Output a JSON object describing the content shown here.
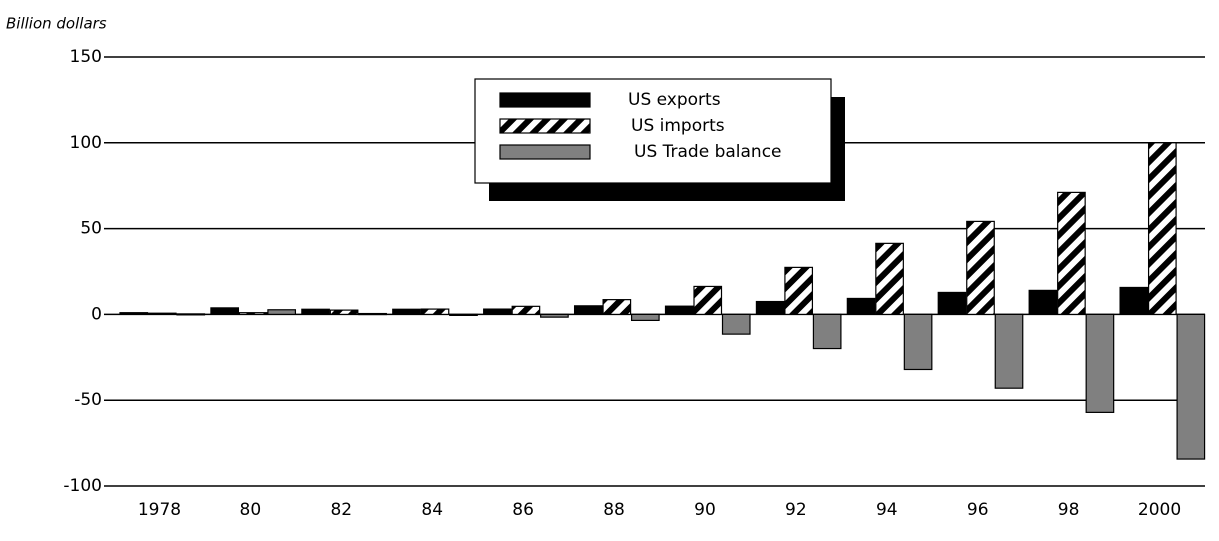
{
  "chart_data": {
    "type": "bar",
    "y_axis_label": "Billion dollars",
    "categories": [
      "1978",
      "80",
      "82",
      "84",
      "86",
      "88",
      "90",
      "92",
      "94",
      "96",
      "98",
      "2000"
    ],
    "series": [
      {
        "name": "US exports",
        "color": "#000000",
        "fill": "solid",
        "values": [
          1,
          3.8,
          3,
          3,
          3.1,
          5,
          4.8,
          7.5,
          9.3,
          12.8,
          14,
          15.7
        ]
      },
      {
        "name": "US imports",
        "color": "#000000",
        "fill": "hatch",
        "values": [
          0.7,
          1,
          2.5,
          3.1,
          4.7,
          8.6,
          16.3,
          27.4,
          41.4,
          54.2,
          71.1,
          100
        ]
      },
      {
        "name": "US Trade balance",
        "color": "#808080",
        "fill": "solid",
        "values": [
          0.3,
          2.7,
          0.5,
          -0.1,
          -1.6,
          -3.5,
          -11.5,
          -19.9,
          -32.1,
          -43,
          -57.1,
          -84.3
        ]
      }
    ],
    "ylim": [
      -100,
      150
    ],
    "yticks": [
      -100,
      -50,
      0,
      50,
      100,
      150
    ],
    "grid": true,
    "legend": "top-center"
  }
}
